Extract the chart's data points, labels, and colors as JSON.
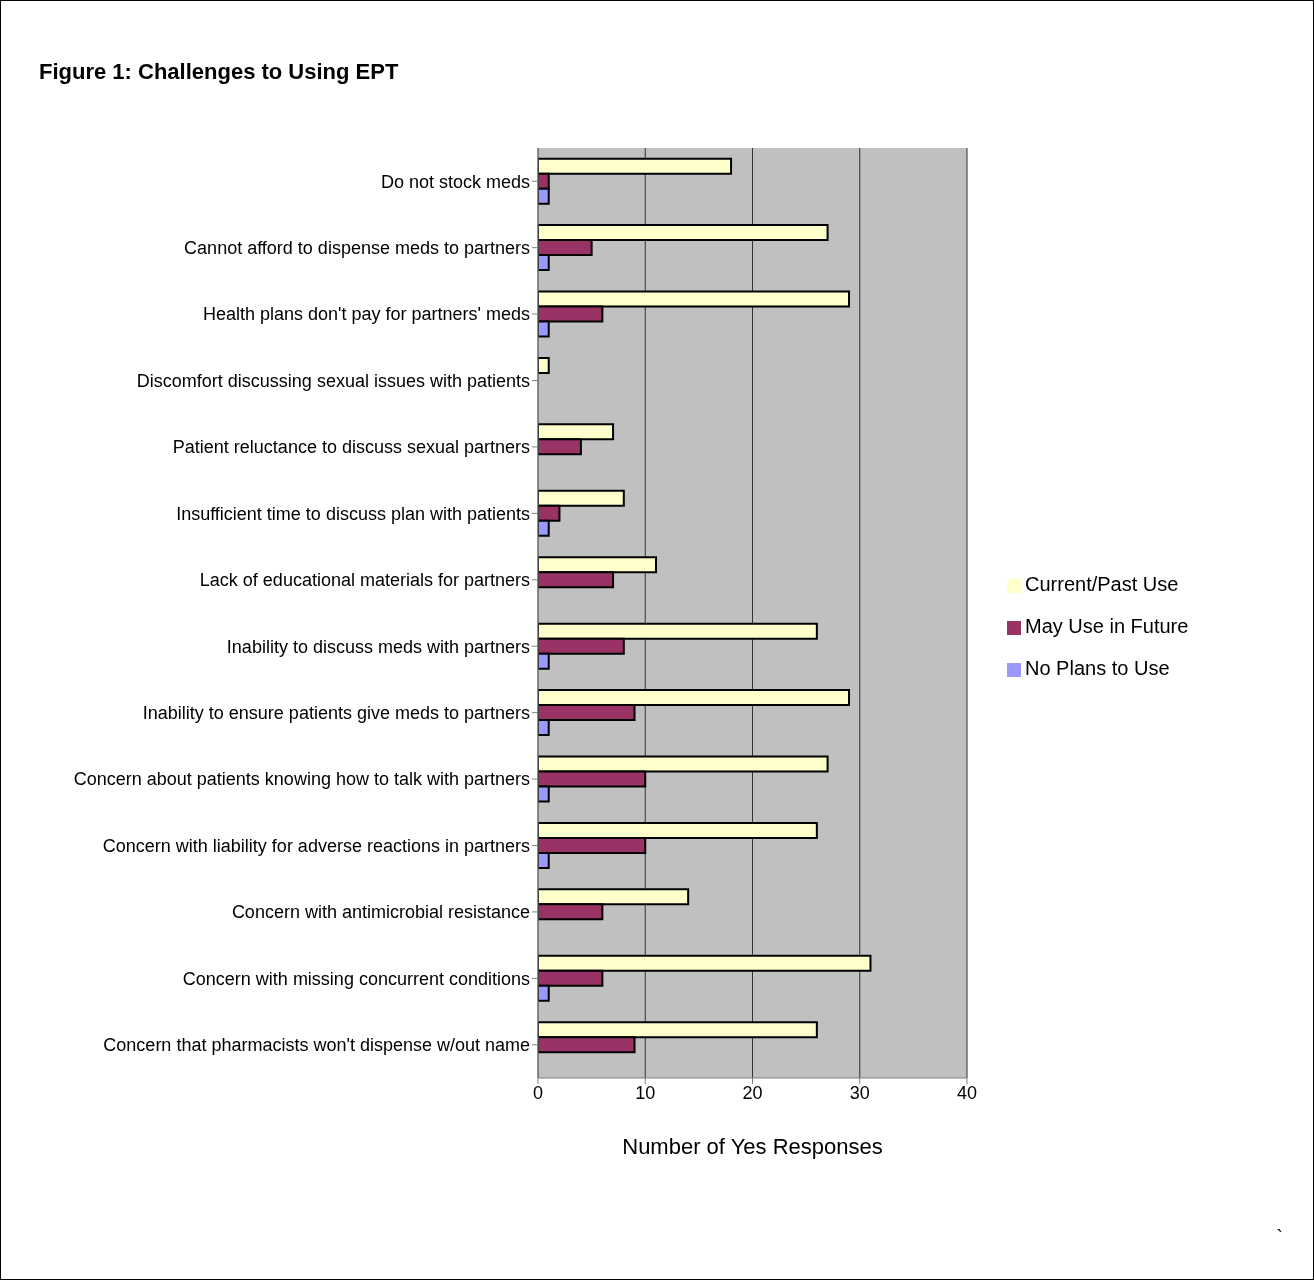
{
  "chart_data": {
    "type": "bar",
    "orientation": "horizontal",
    "title": "Figure 1: Challenges to Using EPT",
    "xlabel": "Number of Yes Responses",
    "categories": [
      "Do not stock meds",
      "Cannot afford to dispense meds to partners",
      "Health plans don't pay for partners' meds",
      "Discomfort discussing sexual issues with patients",
      "Patient reluctance to discuss sexual partners",
      "Insufficient time to discuss plan with patients",
      "Lack of educational materials for partners",
      "Inability to discuss meds with partners",
      "Inability to ensure patients give meds to partners",
      "Concern about patients knowing how to talk with partners",
      "Concern with liability for adverse reactions in partners",
      "Concern with antimicrobial resistance",
      "Concern with missing concurrent conditions",
      "Concern that pharmacists won't dispense w/out name"
    ],
    "series": [
      {
        "name": "Current/Past Use",
        "color": "#ffffcc",
        "values": [
          18,
          27,
          29,
          1,
          7,
          8,
          11,
          26,
          29,
          27,
          26,
          14,
          31,
          26
        ]
      },
      {
        "name": "May Use in Future",
        "color": "#993366",
        "values": [
          1,
          5,
          6,
          null,
          4,
          2,
          7,
          8,
          9,
          10,
          10,
          6,
          6,
          9
        ]
      },
      {
        "name": "No Plans to Use",
        "color": "#9999ff",
        "values": [
          1,
          1,
          1,
          null,
          null,
          1,
          null,
          1,
          1,
          1,
          1,
          null,
          1,
          null
        ]
      }
    ],
    "xlim": [
      0,
      40
    ],
    "xticks": [
      0,
      10,
      20,
      30,
      40
    ],
    "grid": "x",
    "legend": "right",
    "annotations": [
      "`"
    ]
  }
}
